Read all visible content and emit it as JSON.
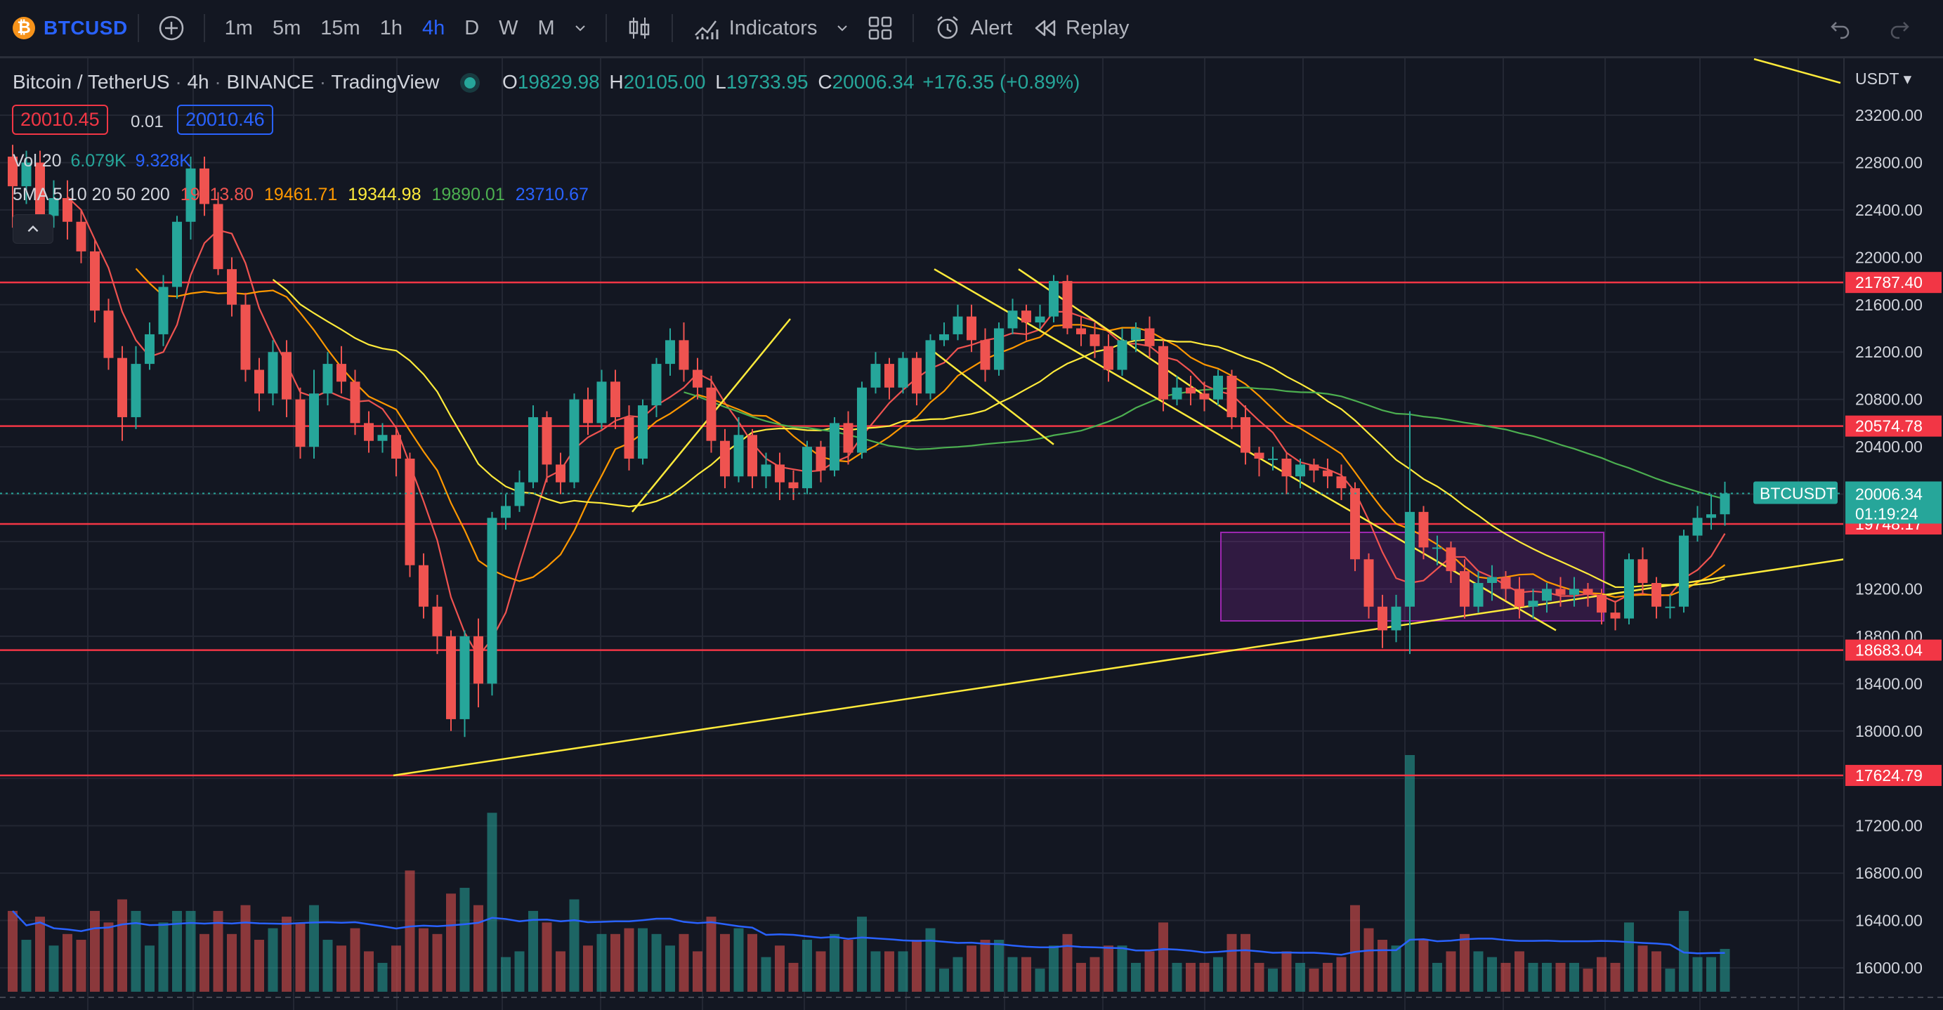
{
  "toolbar": {
    "symbol": "BTCUSD",
    "timeframes": [
      "1m",
      "5m",
      "15m",
      "1h",
      "4h",
      "D",
      "W",
      "M"
    ],
    "active_timeframe": "4h",
    "indicators_label": "Indicators",
    "alert_label": "Alert",
    "replay_label": "Replay"
  },
  "legend": {
    "title": "Bitcoin / TetherUS",
    "interval": "4h",
    "exchange": "BINANCE",
    "source": "TradingView",
    "o_label": "O",
    "o": "19829.98",
    "h_label": "H",
    "h": "20105.00",
    "l_label": "L",
    "l": "19733.95",
    "c_label": "C",
    "c": "20006.34",
    "change": "+176.35 (+0.89%)",
    "sell": "20010.45",
    "spread": "0.01",
    "buy": "20010.46",
    "vol_label": "Vol 20",
    "vol1": "6.079K",
    "vol2": "9.328K",
    "ma_label": "5MA 5 10 20 50 200",
    "ma5": "19713.80",
    "ma10": "19461.71",
    "ma20": "19344.98",
    "ma50": "19890.01",
    "ma200": "23710.67"
  },
  "colors": {
    "bg": "#131722",
    "up": "#26a69a",
    "down": "#ef5350",
    "ma5": "#ef5350",
    "ma10": "#ff9800",
    "ma20": "#ffeb3b",
    "ma50": "#4caf50",
    "ma200": "#2962ff",
    "hline": "#f23645",
    "trend": "#ffeb3b"
  },
  "chart_data": {
    "type": "candlestick",
    "title": "Bitcoin / TetherUS · 4h · BINANCE",
    "currency": "USDT",
    "ylim": [
      15800,
      23500
    ],
    "y_ticks": [
      "23200.00",
      "22800.00",
      "22400.00",
      "22000.00",
      "21600.00",
      "21200.00",
      "20800.00",
      "20400.00",
      "19200.00",
      "18800.00",
      "18400.00",
      "18000.00",
      "17200.00",
      "16800.00",
      "16400.00",
      "16000.00"
    ],
    "horizontal_levels": [
      "21787.40",
      "20574.78",
      "19748.17",
      "18683.04",
      "17624.79"
    ],
    "last_price_label": "BTCUSDT",
    "last_price": "20006.34",
    "countdown": "01:19:24",
    "candles": [
      [
        22850,
        22600,
        22950,
        22250
      ],
      [
        22600,
        22800,
        22900,
        22450
      ],
      [
        22800,
        22350,
        22900,
        22250
      ],
      [
        22350,
        22500,
        22650,
        22250
      ],
      [
        22500,
        22300,
        22650,
        22150
      ],
      [
        22300,
        22050,
        22400,
        21950
      ],
      [
        22050,
        21550,
        22150,
        21450
      ],
      [
        21550,
        21150,
        21650,
        21050
      ],
      [
        21150,
        20650,
        21250,
        20450
      ],
      [
        20650,
        21100,
        21250,
        20550
      ],
      [
        21100,
        21350,
        21450,
        21050
      ],
      [
        21350,
        21750,
        21850,
        21250
      ],
      [
        21750,
        22300,
        22350,
        21650
      ],
      [
        22300,
        22750,
        22850,
        22150
      ],
      [
        22750,
        22450,
        22850,
        22350
      ],
      [
        22450,
        21900,
        22550,
        21850
      ],
      [
        21900,
        21600,
        22000,
        21500
      ],
      [
        21600,
        21050,
        21700,
        20950
      ],
      [
        21050,
        20850,
        21150,
        20700
      ],
      [
        20850,
        21200,
        21300,
        20750
      ],
      [
        21200,
        20800,
        21300,
        20650
      ],
      [
        20800,
        20400,
        20900,
        20300
      ],
      [
        20400,
        20850,
        21050,
        20300
      ],
      [
        20850,
        21100,
        21200,
        20750
      ],
      [
        21100,
        20950,
        21250,
        20850
      ],
      [
        20950,
        20600,
        21050,
        20500
      ],
      [
        20600,
        20450,
        20700,
        20350
      ],
      [
        20450,
        20500,
        20600,
        20350
      ],
      [
        20500,
        20300,
        20550,
        20150
      ],
      [
        20300,
        19400,
        20350,
        19300
      ],
      [
        19400,
        19050,
        19500,
        18950
      ],
      [
        19050,
        18800,
        19150,
        18650
      ],
      [
        18800,
        18100,
        18850,
        18000
      ],
      [
        18100,
        18800,
        18850,
        17950
      ],
      [
        18800,
        18400,
        18950,
        18200
      ],
      [
        18400,
        19800,
        19850,
        18300
      ],
      [
        19800,
        19900,
        20000,
        19700
      ],
      [
        19900,
        20100,
        20200,
        19850
      ],
      [
        20100,
        20650,
        20750,
        20050
      ],
      [
        20650,
        20250,
        20700,
        20100
      ],
      [
        20250,
        20100,
        20350,
        20000
      ],
      [
        20100,
        20800,
        20850,
        20050
      ],
      [
        20800,
        20600,
        20900,
        20500
      ],
      [
        20600,
        20950,
        21050,
        20550
      ],
      [
        20950,
        20650,
        21050,
        20550
      ],
      [
        20650,
        20300,
        20750,
        20200
      ],
      [
        20300,
        20750,
        20800,
        20250
      ],
      [
        20750,
        21100,
        21150,
        20650
      ],
      [
        21100,
        21300,
        21400,
        21000
      ],
      [
        21300,
        21050,
        21450,
        20950
      ],
      [
        21050,
        20900,
        21150,
        20800
      ],
      [
        20900,
        20450,
        21000,
        20350
      ],
      [
        20450,
        20150,
        20550,
        20050
      ],
      [
        20150,
        20500,
        20650,
        20100
      ],
      [
        20500,
        20150,
        20550,
        20050
      ],
      [
        20150,
        20250,
        20350,
        20050
      ],
      [
        20250,
        20100,
        20350,
        19950
      ],
      [
        20100,
        20050,
        20200,
        19950
      ],
      [
        20050,
        20400,
        20450,
        20000
      ],
      [
        20400,
        20200,
        20450,
        20100
      ],
      [
        20200,
        20600,
        20650,
        20150
      ],
      [
        20600,
        20350,
        20700,
        20250
      ],
      [
        20350,
        20900,
        20950,
        20300
      ],
      [
        20900,
        21100,
        21200,
        20850
      ],
      [
        21100,
        20900,
        21150,
        20800
      ],
      [
        20900,
        21150,
        21200,
        20850
      ],
      [
        21150,
        20850,
        21200,
        20750
      ],
      [
        20850,
        21300,
        21350,
        20800
      ],
      [
        21300,
        21350,
        21450,
        21250
      ],
      [
        21350,
        21500,
        21600,
        21300
      ],
      [
        21500,
        21300,
        21600,
        21200
      ],
      [
        21300,
        21050,
        21400,
        20950
      ],
      [
        21050,
        21400,
        21450,
        21000
      ],
      [
        21400,
        21550,
        21650,
        21350
      ],
      [
        21550,
        21450,
        21600,
        21300
      ],
      [
        21450,
        21500,
        21600,
        21400
      ],
      [
        21500,
        21800,
        21850,
        21450
      ],
      [
        21800,
        21400,
        21850,
        21350
      ],
      [
        21400,
        21350,
        21500,
        21250
      ],
      [
        21350,
        21250,
        21450,
        21150
      ],
      [
        21250,
        21050,
        21350,
        20950
      ],
      [
        21050,
        21300,
        21400,
        21000
      ],
      [
        21300,
        21400,
        21450,
        21200
      ],
      [
        21400,
        21250,
        21500,
        21150
      ],
      [
        21250,
        20800,
        21300,
        20700
      ],
      [
        20800,
        20900,
        21000,
        20750
      ],
      [
        20900,
        20850,
        21000,
        20750
      ],
      [
        20850,
        20800,
        20950,
        20700
      ],
      [
        20800,
        21000,
        21050,
        20750
      ],
      [
        21000,
        20650,
        21050,
        20550
      ],
      [
        20650,
        20350,
        20750,
        20250
      ],
      [
        20350,
        20300,
        20400,
        20150
      ],
      [
        20300,
        20300,
        20400,
        20200
      ],
      [
        20300,
        20150,
        20350,
        20000
      ],
      [
        20150,
        20250,
        20300,
        20050
      ],
      [
        20250,
        20200,
        20300,
        20100
      ],
      [
        20200,
        20150,
        20300,
        20050
      ],
      [
        20150,
        20050,
        20250,
        19950
      ],
      [
        20050,
        19450,
        20100,
        19350
      ],
      [
        19450,
        19050,
        19500,
        18950
      ],
      [
        19050,
        18850,
        19150,
        18700
      ],
      [
        18850,
        19050,
        19150,
        18750
      ],
      [
        19050,
        19850,
        20700,
        18650
      ],
      [
        19850,
        19550,
        19900,
        19450
      ],
      [
        19550,
        19550,
        19650,
        19400
      ],
      [
        19550,
        19350,
        19600,
        19250
      ],
      [
        19350,
        19050,
        19450,
        18950
      ],
      [
        19050,
        19250,
        19350,
        19000
      ],
      [
        19250,
        19300,
        19400,
        19100
      ],
      [
        19300,
        19200,
        19350,
        19100
      ],
      [
        19200,
        19050,
        19300,
        18950
      ],
      [
        19050,
        19100,
        19200,
        18950
      ],
      [
        19100,
        19200,
        19250,
        19000
      ],
      [
        19200,
        19150,
        19300,
        19050
      ],
      [
        19150,
        19200,
        19300,
        19050
      ],
      [
        19200,
        19150,
        19250,
        19050
      ],
      [
        19150,
        19000,
        19200,
        18900
      ],
      [
        19000,
        18950,
        19100,
        18850
      ],
      [
        18950,
        19450,
        19500,
        18900
      ],
      [
        19450,
        19250,
        19550,
        19150
      ],
      [
        19250,
        19050,
        19300,
        18950
      ],
      [
        19050,
        19050,
        19150,
        18950
      ],
      [
        19050,
        19650,
        19700,
        19000
      ],
      [
        19650,
        19800,
        19900,
        19600
      ],
      [
        19800,
        19830,
        20000,
        19700
      ],
      [
        19830,
        20006,
        20105,
        19734
      ]
    ],
    "volume_label": "Vol 20"
  }
}
